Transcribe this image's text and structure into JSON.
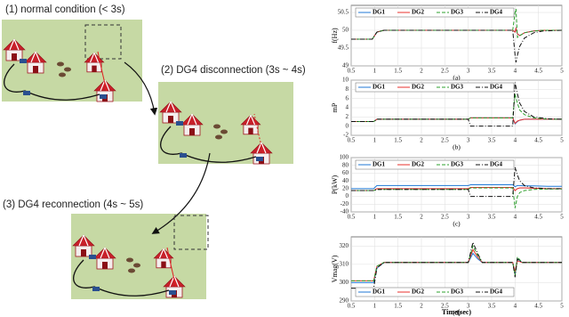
{
  "diagram": {
    "panels": [
      {
        "label": "(1) normal condition (< 3s)"
      },
      {
        "label": "(2) DG4 disconnection (3s ~ 4s)"
      },
      {
        "label": "(3) DG4 reconnection (4s ~ 5s)"
      }
    ]
  },
  "chart_data": [
    {
      "type": "line",
      "ylabel": "f(Hz)",
      "caption": "(a)",
      "x": [
        0.5,
        0.95,
        1.05,
        1.2,
        3.95,
        4.0,
        4.02,
        4.05,
        4.1,
        4.2,
        4.4,
        4.6,
        5
      ],
      "xlim": [
        0.5,
        5
      ],
      "xticks": [
        0.5,
        1,
        1.5,
        2,
        2.5,
        3,
        3.5,
        4,
        4.5,
        5
      ],
      "ylim": [
        49,
        50.7
      ],
      "yticks": [
        49,
        49.5,
        50,
        50.5
      ],
      "series": [
        {
          "name": "DG1",
          "color": "#1f77d4",
          "dash": "solid",
          "values": [
            49.75,
            49.75,
            49.95,
            50,
            50,
            49.95,
            50.05,
            49.9,
            49.85,
            49.93,
            49.98,
            50,
            50
          ]
        },
        {
          "name": "DG2",
          "color": "#e8302c",
          "dash": "solid",
          "values": [
            49.75,
            49.75,
            49.95,
            50,
            50,
            49.95,
            50.05,
            49.9,
            49.85,
            49.93,
            49.98,
            50,
            50
          ]
        },
        {
          "name": "DG3",
          "color": "#2ca02c",
          "dash": "dashed",
          "values": [
            49.75,
            49.75,
            49.95,
            50,
            50,
            50.5,
            50.6,
            49.8,
            49.85,
            49.93,
            49.98,
            50,
            50
          ]
        },
        {
          "name": "DG4",
          "color": "#111111",
          "dash": "dashdot",
          "values": [
            49.75,
            49.75,
            49.95,
            50,
            50,
            49.3,
            49.1,
            49.3,
            49.55,
            49.78,
            49.93,
            49.98,
            50
          ]
        }
      ]
    },
    {
      "type": "line",
      "ylabel": "mP",
      "caption": "(b)",
      "x": [
        0.5,
        0.98,
        1.05,
        3.0,
        3.05,
        3.95,
        4.0,
        4.05,
        4.1,
        4.2,
        4.4,
        4.7,
        5
      ],
      "xlim": [
        0.5,
        5
      ],
      "xticks": [
        0.5,
        1,
        1.5,
        2,
        2.5,
        3,
        3.5,
        4,
        4.5,
        5
      ],
      "ylim": [
        -2,
        10
      ],
      "yticks": [
        -2,
        0,
        2,
        4,
        6,
        8,
        10
      ],
      "series": [
        {
          "name": "DG1",
          "color": "#1f77d4",
          "dash": "solid",
          "values": [
            1,
            1,
            1.5,
            1.5,
            1.8,
            1.8,
            0.5,
            1,
            1.3,
            1.5,
            1.5,
            1.5,
            1.5
          ]
        },
        {
          "name": "DG2",
          "color": "#e8302c",
          "dash": "solid",
          "values": [
            1,
            1,
            1.5,
            1.5,
            1.8,
            1.8,
            0.6,
            1.1,
            1.3,
            1.5,
            1.5,
            1.5,
            1.5
          ]
        },
        {
          "name": "DG3",
          "color": "#2ca02c",
          "dash": "dashed",
          "values": [
            1,
            1,
            1.5,
            1.5,
            1.8,
            1.8,
            7,
            5,
            3.5,
            2.5,
            1.8,
            1.5,
            1.5
          ]
        },
        {
          "name": "DG4",
          "color": "#111111",
          "dash": "dashdot",
          "values": [
            1,
            1,
            1.5,
            1.5,
            0,
            0,
            9.5,
            7,
            5,
            3.2,
            2,
            1.6,
            1.5
          ]
        }
      ]
    },
    {
      "type": "line",
      "ylabel": "P(kW)",
      "caption": "(c)",
      "x": [
        0.5,
        0.98,
        1.05,
        3.0,
        3.05,
        3.95,
        4.0,
        4.05,
        4.1,
        4.2,
        4.4,
        4.7,
        5
      ],
      "xlim": [
        0.5,
        5
      ],
      "xticks": [
        0.5,
        1,
        1.5,
        2,
        2.5,
        3,
        3.5,
        4,
        4.5,
        5
      ],
      "ylim": [
        -40,
        100
      ],
      "yticks": [
        -40,
        -20,
        0,
        20,
        40,
        60,
        80,
        100
      ],
      "series": [
        {
          "name": "DG1",
          "color": "#1f77d4",
          "dash": "solid",
          "values": [
            20,
            20,
            28,
            28,
            30,
            30,
            25,
            28,
            28,
            27,
            27,
            26,
            26
          ]
        },
        {
          "name": "DG2",
          "color": "#e8302c",
          "dash": "solid",
          "values": [
            15,
            15,
            20,
            20,
            23,
            23,
            15,
            20,
            22,
            22,
            21,
            20,
            20
          ]
        },
        {
          "name": "DG3",
          "color": "#2ca02c",
          "dash": "dashed",
          "values": [
            15,
            15,
            18,
            18,
            22,
            22,
            -30,
            0,
            10,
            15,
            18,
            19,
            19
          ]
        },
        {
          "name": "DG4",
          "color": "#111111",
          "dash": "dashdot",
          "values": [
            15,
            15,
            18,
            18,
            0,
            0,
            75,
            55,
            40,
            28,
            22,
            20,
            20
          ]
        }
      ]
    },
    {
      "type": "line",
      "ylabel": "Vmag(V)",
      "caption": "(d)",
      "xlabel": "Time(sec)",
      "x": [
        0.5,
        0.98,
        1.05,
        1.2,
        3.0,
        3.1,
        3.2,
        3.3,
        3.95,
        4.0,
        4.05,
        4.15,
        5
      ],
      "xlim": [
        0.5,
        5
      ],
      "xticks": [
        0.5,
        1,
        1.5,
        2,
        2.5,
        3,
        3.5,
        4,
        4.5,
        5
      ],
      "ylim": [
        290,
        325
      ],
      "yticks": [
        290,
        300,
        310,
        320
      ],
      "series": [
        {
          "name": "DG1",
          "color": "#1f77d4",
          "dash": "solid",
          "values": [
            300,
            300,
            308,
            311,
            311,
            316,
            313,
            311,
            311,
            305,
            313,
            311,
            311
          ]
        },
        {
          "name": "DG2",
          "color": "#e8302c",
          "dash": "solid",
          "values": [
            301,
            301,
            309,
            311,
            311,
            318,
            314,
            311,
            311,
            306,
            312,
            311,
            311
          ]
        },
        {
          "name": "DG3",
          "color": "#2ca02c",
          "dash": "dashed",
          "values": [
            301,
            301,
            309,
            311,
            311,
            320,
            315,
            311,
            311,
            304,
            314,
            311,
            311
          ]
        },
        {
          "name": "DG4",
          "color": "#111111",
          "dash": "dashdot",
          "values": [
            297,
            297,
            308,
            311,
            311,
            322,
            316,
            311,
            311,
            303,
            313,
            311,
            311
          ]
        }
      ]
    }
  ]
}
